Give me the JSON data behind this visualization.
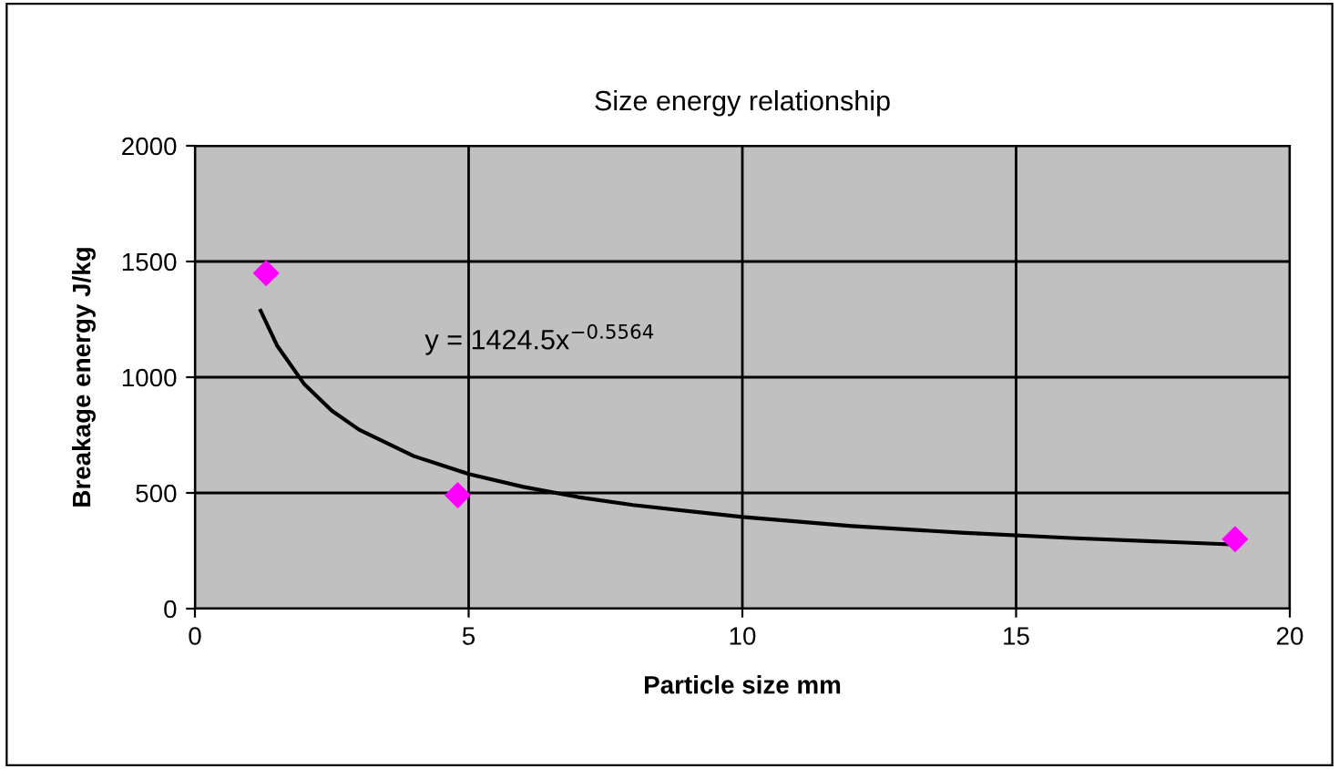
{
  "chart_data": {
    "type": "scatter",
    "title": "Size energy relationship",
    "xlabel": "Particle size mm",
    "ylabel": "Breakage energy J/kg",
    "series": [
      {
        "color": "#ff00ff",
        "marker": "diamond",
        "x": [
          1.3,
          4.8,
          19.0
        ],
        "values": [
          1450,
          490,
          300
        ]
      },
      {
        "type": "line",
        "color": "#000000",
        "marker": "none",
        "line_style": "solid",
        "x": [
          1.2,
          1.5,
          2,
          2.5,
          3,
          4,
          5,
          6,
          7,
          8,
          10,
          12,
          14,
          16,
          19
        ],
        "values": [
          1287,
          1137,
          969,
          855,
          773,
          659,
          582,
          526,
          482,
          448,
          396,
          357,
          328,
          305,
          277
        ]
      }
    ],
    "annotations": [
      "y = 1424.5x$^{−0.5564}$"
    ],
    "xlim": [
      0,
      20
    ],
    "xticks": [
      0,
      5,
      10,
      15,
      20
    ],
    "ylim": [
      0,
      2000
    ],
    "yticks": [
      0,
      500,
      1000,
      1500,
      2000
    ],
    "grid": true,
    "legend": false
  }
}
